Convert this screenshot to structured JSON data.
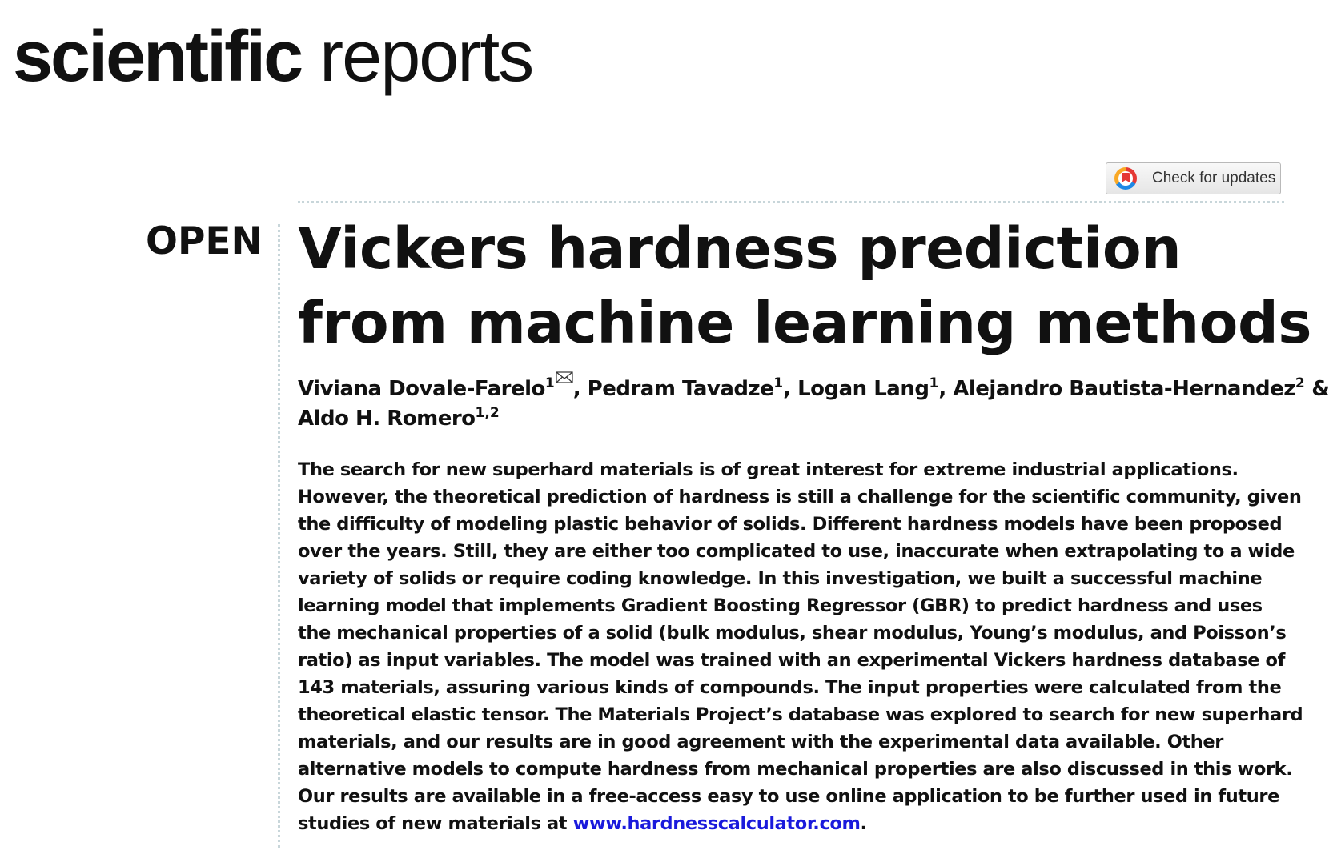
{
  "journal": {
    "name_bold": "scientific",
    "name_light": "reports"
  },
  "update_button": {
    "label": "Check for updates",
    "icon": "crossmark-icon"
  },
  "access_label": "OPEN",
  "title_lines": [
    "Vickers hardness prediction",
    "from machine learning methods"
  ],
  "authors": {
    "a1": {
      "name": "Viviana Dovale-Farelo",
      "aff": "1"
    },
    "sep1": ", ",
    "a2": {
      "name": "Pedram Tavadze",
      "aff": "1"
    },
    "sep2": ", ",
    "a3": {
      "name": "Logan Lang",
      "aff": "1"
    },
    "sep3": ", ",
    "a4": {
      "name": "Alejandro Bautista-Hernandez",
      "aff": "2"
    },
    "sep4": " &",
    "a5": {
      "name": "Aldo H. Romero",
      "aff": "1,2"
    },
    "corresponding_icon": "envelope-icon"
  },
  "abstract": {
    "lines": [
      "The search for new superhard materials is of great interest for extreme industrial applications.",
      "However, the theoretical prediction of hardness is still a challenge for the scientific community, given",
      "the difficulty of modeling plastic behavior of solids. Different hardness models have been proposed",
      "over the years. Still, they are either too complicated to use, inaccurate when extrapolating to a wide",
      "variety of solids or require coding knowledge. In this investigation, we built a successful machine",
      "learning model that implements Gradient Boosting Regressor (GBR) to predict hardness and uses",
      "the mechanical properties of a solid (bulk modulus, shear modulus, Young’s modulus, and Poisson’s",
      "ratio) as input variables. The model was trained with an experimental Vickers hardness database of",
      "143 materials, assuring various kinds of compounds. The input properties were calculated from the",
      "theoretical elastic tensor. The Materials Project’s database was explored to search for new superhard",
      "materials, and our results are in good agreement with the experimental data available. Other",
      "alternative models to compute hardness from mechanical properties are also discussed in this work.",
      "Our results are available in a free-access easy to use online application to be further used in future"
    ],
    "last_line_prefix": "studies of new materials at ",
    "link_text": "www.hardnesscalculator.com",
    "last_line_suffix": "."
  },
  "colors": {
    "link": "#1a1adc",
    "rule": "#c8d6da",
    "text": "#111111"
  }
}
